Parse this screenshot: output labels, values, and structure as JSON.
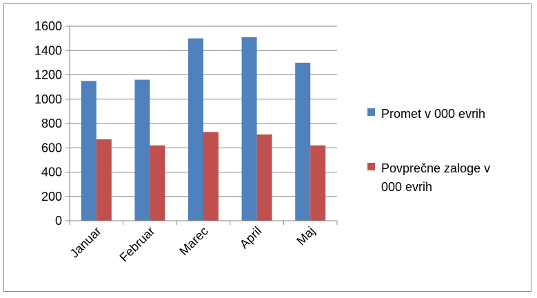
{
  "chart_data": {
    "type": "bar",
    "categories": [
      "Januar",
      "Februar",
      "Marec",
      "April",
      "Maj"
    ],
    "series": [
      {
        "name": "Promet v 000 evrih",
        "values": [
          1150,
          1160,
          1500,
          1510,
          1300
        ],
        "color": "#4F81BD"
      },
      {
        "name": "Povprečne zaloge v 000 evrih",
        "values": [
          670,
          620,
          730,
          710,
          620
        ],
        "color": "#C0504D"
      }
    ],
    "title": "",
    "xlabel": "",
    "ylabel": "",
    "ylim": [
      0,
      1600
    ],
    "yticks": [
      0,
      200,
      400,
      600,
      800,
      1000,
      1200,
      1400,
      1600
    ],
    "grid": true,
    "legend": "right",
    "legend_lines": [
      [
        "Promet v 000 evrih"
      ],
      [
        "Povprečne zaloge v",
        "000 evrih"
      ]
    ]
  }
}
